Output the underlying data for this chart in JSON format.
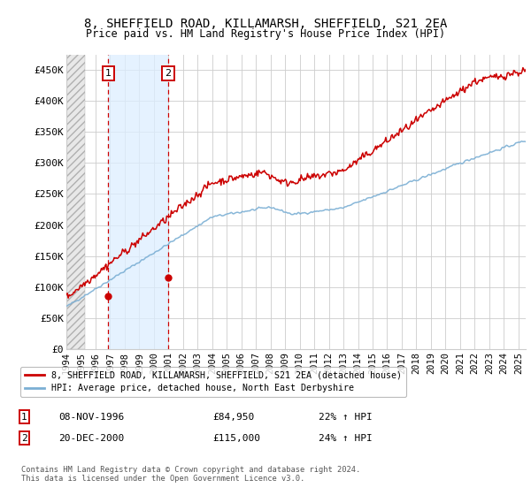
{
  "title_line1": "8, SHEFFIELD ROAD, KILLAMARSH, SHEFFIELD, S21 2EA",
  "title_line2": "Price paid vs. HM Land Registry's House Price Index (HPI)",
  "ylim": [
    0,
    475000
  ],
  "yticks": [
    0,
    50000,
    100000,
    150000,
    200000,
    250000,
    300000,
    350000,
    400000,
    450000
  ],
  "ytick_labels": [
    "£0",
    "£50K",
    "£100K",
    "£150K",
    "£200K",
    "£250K",
    "£300K",
    "£350K",
    "£400K",
    "£450K"
  ],
  "sale1_date": 1996.86,
  "sale1_price": 84950,
  "sale2_date": 2000.97,
  "sale2_price": 115000,
  "hpi_color": "#7bafd4",
  "price_color": "#cc0000",
  "grid_color": "#cccccc",
  "legend_label_red": "8, SHEFFIELD ROAD, KILLAMARSH, SHEFFIELD, S21 2EA (detached house)",
  "legend_label_blue": "HPI: Average price, detached house, North East Derbyshire",
  "annotation1_label": "1",
  "annotation2_label": "2",
  "table_row1": [
    "1",
    "08-NOV-1996",
    "£84,950",
    "22% ↑ HPI"
  ],
  "table_row2": [
    "2",
    "20-DEC-2000",
    "£115,000",
    "24% ↑ HPI"
  ],
  "footer": "Contains HM Land Registry data © Crown copyright and database right 2024.\nThis data is licensed under the Open Government Licence v3.0.",
  "xmin": 1994,
  "xmax": 2025.5
}
